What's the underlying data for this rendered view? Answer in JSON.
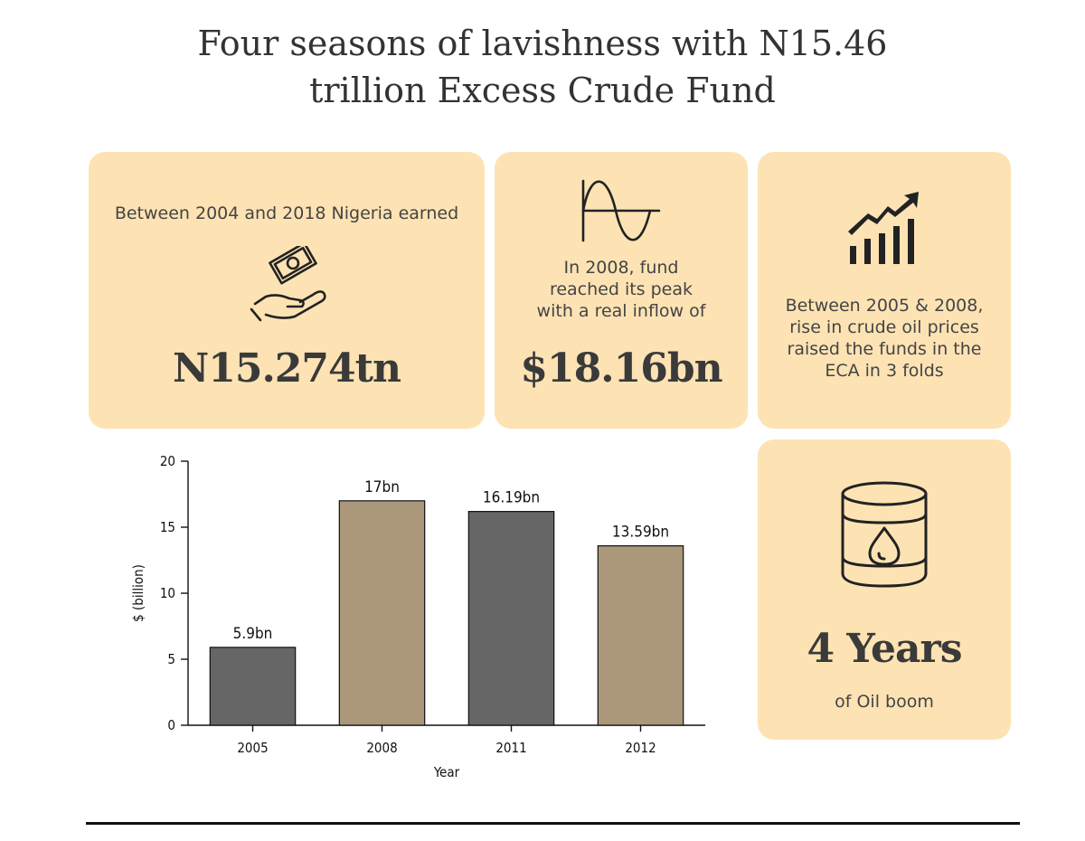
{
  "title": {
    "line1": "Four seasons of lavishness with N15.46",
    "line2": "trillion Excess Crude Fund"
  },
  "cards": {
    "earned": {
      "text": "Between 2004 and 2018 Nigeria earned",
      "stat": "N15.274tn",
      "icon": "money-hand-icon"
    },
    "peak": {
      "line1": "In 2008, fund",
      "line2": "reached its peak",
      "line3": "with a real inflow of",
      "stat": "$18.16bn",
      "icon": "wave-icon"
    },
    "rise": {
      "line1": "Between 2005 & 2008,",
      "line2": "rise in crude oil prices",
      "line3": "raised the funds in the",
      "line4": "ECA in 3 folds",
      "icon": "growth-chart-icon"
    },
    "boom": {
      "stat": "4 Years",
      "text": "of Oil boom",
      "icon": "oil-barrel-icon"
    }
  },
  "colors": {
    "card_bg": "#FDE3B4",
    "bar_dark": "#666666",
    "bar_tan": "#AB987A",
    "text": "#333333"
  },
  "chart_data": {
    "type": "bar",
    "categories": [
      "2005",
      "2008",
      "2011",
      "2012"
    ],
    "values": [
      5.9,
      17,
      16.19,
      13.59
    ],
    "data_labels": [
      "5.9bn",
      "17bn",
      "16.19bn",
      "13.59bn"
    ],
    "bar_colors": [
      "#666666",
      "#AB987A",
      "#666666",
      "#AB987A"
    ],
    "xlabel": "Year",
    "ylabel": "$ (billion)",
    "ylim": [
      0,
      20
    ],
    "yticks": [
      "0",
      "5",
      "10",
      "15",
      "20"
    ],
    "grid": false
  }
}
